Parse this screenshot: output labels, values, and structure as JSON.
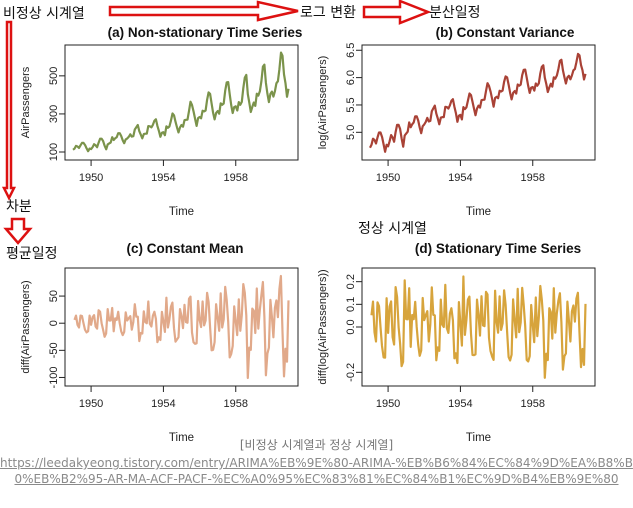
{
  "annotations": {
    "nonstationary": "비정상 시계열",
    "log_transform": "로그 변환",
    "const_variance": "분산일정",
    "differencing": "차분",
    "const_mean": "평균일정",
    "stationary": "정상 시계열"
  },
  "caption": {
    "text": "[비정상 시계열과 정상 시계열]",
    "link": "https://leedakyeong.tistory.com/entry/ARIMA%EB%9E%80-ARIMA-%EB%B6%84%EC%84%9D%EA%B8%B0%EB%B2%95-AR-MA-ACF-PACF-%EC%A0%95%EC%83%81%EC%84%B1%EC%9D%B4%EB%9E%80"
  },
  "colors": {
    "arrow": "#dd1111",
    "panel_a": "#7b934b",
    "panel_b": "#a94236",
    "panel_c": "#e1a98a",
    "panel_d": "#d7a43c",
    "caption": "#777777"
  },
  "chart_data": [
    {
      "type": "line",
      "title": "(a) Non-stationary Time Series",
      "xlabel": "Time",
      "ylabel": "AirPassengers",
      "xlim": [
        1949,
        1961
      ],
      "ylim": [
        100,
        620
      ],
      "xticks": [
        1950,
        1954,
        1958
      ],
      "yticks": [
        100,
        300,
        500
      ],
      "x_start": 1949,
      "x_step": 0.08333,
      "values": [
        112,
        118,
        132,
        129,
        121,
        135,
        148,
        148,
        136,
        119,
        104,
        118,
        115,
        126,
        141,
        135,
        125,
        149,
        170,
        170,
        158,
        133,
        114,
        140,
        145,
        150,
        178,
        163,
        172,
        178,
        199,
        199,
        184,
        162,
        146,
        166,
        171,
        180,
        193,
        181,
        183,
        218,
        230,
        242,
        209,
        191,
        172,
        194,
        196,
        196,
        236,
        235,
        229,
        243,
        264,
        272,
        237,
        211,
        180,
        201,
        204,
        188,
        235,
        227,
        234,
        264,
        302,
        293,
        259,
        229,
        203,
        229,
        242,
        233,
        267,
        269,
        270,
        315,
        364,
        347,
        312,
        274,
        237,
        278,
        284,
        277,
        317,
        313,
        318,
        374,
        413,
        405,
        355,
        306,
        271,
        306,
        315,
        301,
        356,
        348,
        355,
        422,
        465,
        467,
        404,
        347,
        305,
        336,
        340,
        318,
        362,
        348,
        363,
        435,
        491,
        505,
        404,
        359,
        310,
        337,
        360,
        342,
        406,
        396,
        420,
        472,
        548,
        559,
        463,
        407,
        362,
        405,
        417,
        391,
        419,
        461,
        472,
        535,
        622,
        606,
        508,
        461,
        390,
        432
      ]
    },
    {
      "type": "line",
      "title": "(b) Constant Variance",
      "xlabel": "Time",
      "ylabel": "log(AirPassengers)",
      "xlim": [
        1949,
        1961
      ],
      "ylim": [
        4.64,
        6.45
      ],
      "xticks": [
        1950,
        1954,
        1958
      ],
      "yticks": [
        5.0,
        5.5,
        6.0,
        6.5
      ],
      "x_start": 1949,
      "x_step": 0.08333,
      "values": [
        4.718,
        4.771,
        4.883,
        4.86,
        4.796,
        4.905,
        4.997,
        4.997,
        4.913,
        4.779,
        4.644,
        4.771,
        4.745,
        4.836,
        4.949,
        4.905,
        4.828,
        5.004,
        5.136,
        5.136,
        5.063,
        4.89,
        4.736,
        4.942,
        4.977,
        5.011,
        5.182,
        5.094,
        5.147,
        5.182,
        5.293,
        5.293,
        5.215,
        5.088,
        4.984,
        5.112,
        5.142,
        5.193,
        5.263,
        5.198,
        5.209,
        5.384,
        5.438,
        5.489,
        5.342,
        5.252,
        5.147,
        5.268,
        5.278,
        5.278,
        5.464,
        5.46,
        5.434,
        5.493,
        5.576,
        5.606,
        5.468,
        5.352,
        5.193,
        5.303,
        5.318,
        5.236,
        5.46,
        5.425,
        5.455,
        5.576,
        5.71,
        5.68,
        5.557,
        5.434,
        5.313,
        5.434,
        5.489,
        5.451,
        5.587,
        5.595,
        5.598,
        5.753,
        5.897,
        5.849,
        5.743,
        5.613,
        5.468,
        5.628,
        5.649,
        5.624,
        5.759,
        5.746,
        5.762,
        5.924,
        6.023,
        6.004,
        5.872,
        5.724,
        5.602,
        5.724,
        5.753,
        5.707,
        5.875,
        5.852,
        5.872,
        6.045,
        6.142,
        6.146,
        6.001,
        5.849,
        5.72,
        5.817,
        5.829,
        5.762,
        5.892,
        5.852,
        5.894,
        6.075,
        6.196,
        6.225,
        6.001,
        5.883,
        5.737,
        5.82,
        5.886,
        5.835,
        6.006,
        5.981,
        6.04,
        6.157,
        6.306,
        6.326,
        6.138,
        6.009,
        5.892,
        6.004,
        6.033,
        5.969,
        6.038,
        6.133,
        6.157,
        6.282,
        6.433,
        6.407,
        6.23,
        6.133,
        5.966,
        6.068
      ]
    },
    {
      "type": "line",
      "title": "(c) Constant Mean",
      "xlabel": "Time",
      "ylabel": "diff(AirPassengers)",
      "xlim": [
        1949,
        1961
      ],
      "ylim": [
        -101,
        87
      ],
      "xticks": [
        1950,
        1954,
        1958
      ],
      "yticks": [
        -100,
        -50,
        0,
        50
      ],
      "x_start": 1949.083,
      "x_step": 0.08333,
      "values": [
        6,
        14,
        -3,
        -8,
        14,
        13,
        0,
        -12,
        -17,
        -15,
        14,
        -3,
        11,
        15,
        -6,
        -10,
        24,
        21,
        0,
        -12,
        -25,
        -19,
        26,
        5,
        5,
        28,
        -15,
        9,
        6,
        21,
        0,
        -15,
        -22,
        -16,
        20,
        5,
        9,
        13,
        -12,
        2,
        35,
        12,
        12,
        -33,
        -18,
        -19,
        22,
        2,
        0,
        40,
        -1,
        -6,
        14,
        21,
        8,
        -35,
        -26,
        -31,
        21,
        3,
        -16,
        47,
        -8,
        7,
        30,
        38,
        -9,
        -34,
        -30,
        -26,
        26,
        13,
        -9,
        34,
        2,
        1,
        45,
        49,
        -17,
        -35,
        -38,
        -37,
        41,
        6,
        -7,
        40,
        -4,
        5,
        56,
        39,
        -8,
        -50,
        -49,
        -35,
        35,
        9,
        -14,
        55,
        -8,
        7,
        67,
        43,
        2,
        -63,
        -57,
        -42,
        31,
        4,
        -22,
        44,
        -14,
        15,
        72,
        56,
        14,
        -101,
        -45,
        -49,
        27,
        23,
        -18,
        64,
        -10,
        24,
        52,
        76,
        11,
        -96,
        -56,
        -45,
        43,
        12,
        -26,
        28,
        42,
        11,
        63,
        87,
        -16,
        -98,
        -47,
        -71,
        42
      ]
    },
    {
      "type": "line",
      "title": "(d) Stationary Time Series",
      "xlabel": "Time",
      "ylabel": "diff(log(AirPassengers))",
      "xlim": [
        1949,
        1961
      ],
      "ylim": [
        -0.225,
        0.225
      ],
      "xticks": [
        1950,
        1954,
        1958
      ],
      "yticks": [
        -0.2,
        0.0,
        0.1,
        0.2
      ],
      "x_start": 1949.083,
      "x_step": 0.08333,
      "values": [
        0.052,
        0.112,
        -0.023,
        -0.064,
        0.109,
        0.092,
        0.0,
        -0.084,
        -0.134,
        -0.135,
        0.127,
        -0.026,
        0.091,
        0.113,
        -0.044,
        -0.077,
        0.176,
        0.132,
        0.0,
        -0.073,
        -0.173,
        -0.154,
        0.206,
        0.035,
        0.034,
        0.171,
        -0.088,
        0.053,
        0.035,
        0.111,
        0.0,
        -0.078,
        -0.127,
        -0.104,
        0.128,
        0.03,
        0.051,
        0.07,
        -0.064,
        0.011,
        0.175,
        0.054,
        0.051,
        -0.147,
        -0.09,
        -0.105,
        0.121,
        0.01,
        0.0,
        0.186,
        -0.004,
        -0.026,
        0.059,
        0.083,
        0.03,
        -0.138,
        -0.116,
        -0.159,
        0.11,
        0.015,
        -0.082,
        0.223,
        -0.035,
        0.03,
        0.121,
        0.134,
        -0.03,
        -0.123,
        -0.124,
        -0.121,
        0.121,
        0.055,
        -0.038,
        0.136,
        0.007,
        0.004,
        0.155,
        0.144,
        -0.048,
        -0.106,
        -0.13,
        -0.145,
        0.16,
        0.021,
        -0.025,
        0.135,
        -0.013,
        0.016,
        0.162,
        0.099,
        -0.02,
        -0.132,
        -0.148,
        -0.122,
        0.122,
        0.029,
        -0.046,
        0.168,
        -0.023,
        0.02,
        0.173,
        0.097,
        0.004,
        -0.145,
        -0.152,
        -0.129,
        0.097,
        0.012,
        -0.067,
        0.13,
        -0.04,
        0.042,
        0.181,
        0.121,
        0.028,
        -0.224,
        -0.118,
        -0.146,
        0.083,
        0.066,
        -0.051,
        0.171,
        -0.025,
        0.059,
        0.117,
        0.149,
        0.02,
        -0.188,
        -0.129,
        -0.117,
        0.112,
        0.029,
        -0.064,
        0.069,
        0.095,
        0.024,
        0.125,
        0.151,
        -0.026,
        -0.177,
        -0.097,
        -0.167,
        0.102
      ]
    }
  ]
}
